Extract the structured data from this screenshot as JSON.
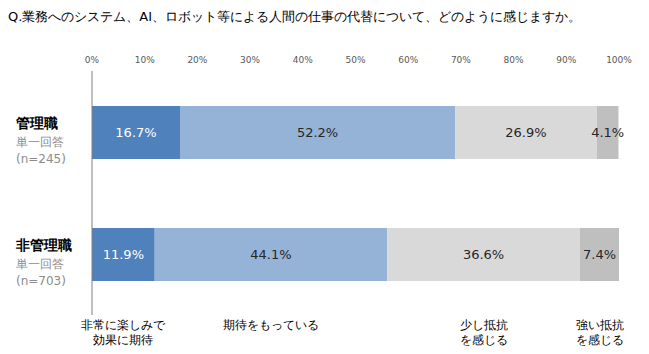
{
  "chart_data": {
    "type": "bar",
    "title": "Q.業務へのシステム、AI、ロボット等による人間の仕事の代替について、どのように感じますか。",
    "orientation": "horizontal",
    "stacked": true,
    "data_labels": true,
    "grid": false,
    "categories": [
      "管理職",
      "非管理職"
    ],
    "category_notes": [
      [
        "単一回答",
        "(n=245)"
      ],
      [
        "単一回答",
        "(n=703)"
      ]
    ],
    "xlim": [
      0,
      100
    ],
    "xticks": [
      {
        "value": 0,
        "label": "0%"
      },
      {
        "value": 10,
        "label": "10%"
      },
      {
        "value": 20,
        "label": "20%"
      },
      {
        "value": 30,
        "label": "30%"
      },
      {
        "value": 40,
        "label": "40%"
      },
      {
        "value": 50,
        "label": "50%"
      },
      {
        "value": 60,
        "label": "60%"
      },
      {
        "value": 70,
        "label": "70%"
      },
      {
        "value": 80,
        "label": "80%"
      },
      {
        "value": 90,
        "label": "90%"
      },
      {
        "value": 100,
        "label": "100%"
      }
    ],
    "series": [
      {
        "name": "非常に楽しみで\n効果に期待",
        "color": "#4f81bd",
        "values": [
          16.7,
          11.9
        ],
        "value_labels": [
          "16.7%",
          "11.9%"
        ]
      },
      {
        "name": "期待をもっている",
        "color": "#95b3d7",
        "values": [
          52.2,
          44.1
        ],
        "value_labels": [
          "52.2%",
          "44.1%"
        ]
      },
      {
        "name": "少し抵抗\nを感じる",
        "color": "#d9d9d9",
        "values": [
          26.9,
          36.6
        ],
        "value_labels": [
          "26.9%",
          "36.6%"
        ]
      },
      {
        "name": "強い抵抗\nを感じる",
        "color": "#bfbfbf",
        "values": [
          4.1,
          7.4
        ],
        "value_labels": [
          "4.1%",
          "7.4%"
        ]
      }
    ]
  }
}
